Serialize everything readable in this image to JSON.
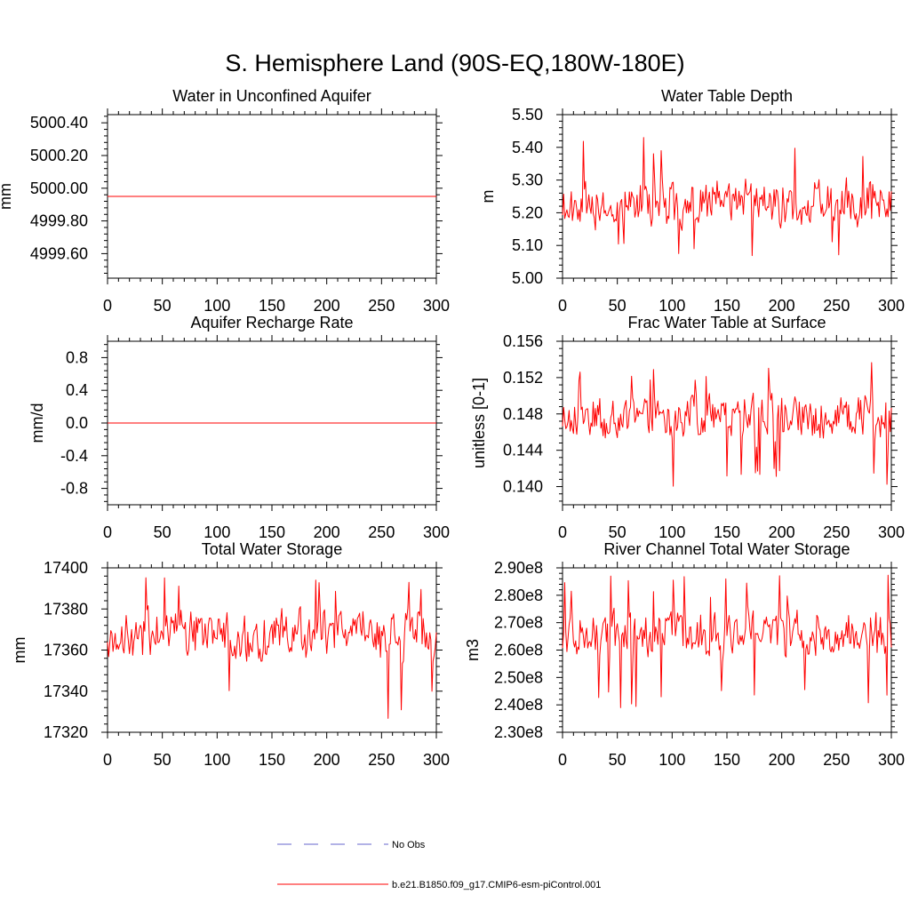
{
  "figure_title": "S. Hemisphere Land (90S-EQ,180W-180E)",
  "colors": {
    "model": "#ff0000",
    "obs": "#6666cc",
    "axis": "#000000"
  },
  "legend": [
    {
      "label": "No Obs",
      "style": "dashed",
      "color": "#6666cc"
    },
    {
      "label": "b.e21.B1850.f09_g17.CMIP6-esm-piControl.001",
      "style": "solid",
      "color": "#ff0000"
    }
  ],
  "chart_data": [
    {
      "type": "line",
      "title": "Water in Unconfined Aquifer",
      "ylabel": "mm",
      "xlim": [
        0,
        300
      ],
      "ylim": [
        4999.45,
        5000.45
      ],
      "xticks": [
        0,
        50,
        100,
        150,
        200,
        250,
        300
      ],
      "xtick_labels": [
        "0",
        "50",
        "100",
        "150",
        "200",
        "250",
        "300"
      ],
      "yticks": [
        4999.6,
        4999.8,
        5000.0,
        5000.2,
        5000.4
      ],
      "ytick_labels": [
        "4999.60",
        "4999.80",
        "5000.00",
        "5000.20",
        "5000.40"
      ],
      "series": [
        {
          "name": "b.e21.B1850.f09_g17.CMIP6-esm-piControl.001",
          "mode": "constant",
          "value": 4999.95
        }
      ]
    },
    {
      "type": "line",
      "title": "Water Table Depth",
      "ylabel": "m",
      "xlim": [
        0,
        300
      ],
      "ylim": [
        5.0,
        5.5
      ],
      "xticks": [
        0,
        50,
        100,
        150,
        200,
        250,
        300
      ],
      "xtick_labels": [
        "0",
        "50",
        "100",
        "150",
        "200",
        "250",
        "300"
      ],
      "yticks": [
        5.0,
        5.1,
        5.2,
        5.3,
        5.4,
        5.5
      ],
      "ytick_labels": [
        "5.00",
        "5.10",
        "5.20",
        "5.30",
        "5.40",
        "5.50"
      ],
      "series": [
        {
          "name": "b.e21.B1850.f09_g17.CMIP6-esm-piControl.001",
          "mode": "noise",
          "mean": 5.23,
          "amp": 0.075,
          "min": 5.06,
          "max": 5.44,
          "seed": 11
        }
      ]
    },
    {
      "type": "line",
      "title": "Aquifer Recharge Rate",
      "ylabel": "mm/d",
      "xlim": [
        0,
        300
      ],
      "ylim": [
        -1.0,
        1.0
      ],
      "xticks": [
        0,
        50,
        100,
        150,
        200,
        250,
        300
      ],
      "xtick_labels": [
        "0",
        "50",
        "100",
        "150",
        "200",
        "250",
        "300"
      ],
      "yticks": [
        -0.8,
        -0.4,
        0.0,
        0.4,
        0.8
      ],
      "ytick_labels": [
        "-0.8",
        "-0.4",
        "0.0",
        "0.4",
        "0.8"
      ],
      "series": [
        {
          "name": "b.e21.B1850.f09_g17.CMIP6-esm-piControl.001",
          "mode": "constant",
          "value": 0.0
        }
      ]
    },
    {
      "type": "line",
      "title": "Frac Water Table at Surface",
      "ylabel": "unitless [0-1]",
      "xlim": [
        0,
        300
      ],
      "ylim": [
        0.138,
        0.156
      ],
      "xticks": [
        0,
        50,
        100,
        150,
        200,
        250,
        300
      ],
      "xtick_labels": [
        "0",
        "50",
        "100",
        "150",
        "200",
        "250",
        "300"
      ],
      "yticks": [
        0.14,
        0.144,
        0.148,
        0.152,
        0.156
      ],
      "ytick_labels": [
        "0.140",
        "0.144",
        "0.148",
        "0.152",
        "0.156"
      ],
      "series": [
        {
          "name": "b.e21.B1850.f09_g17.CMIP6-esm-piControl.001",
          "mode": "noise",
          "mean": 0.1478,
          "amp": 0.0026,
          "min": 0.1397,
          "max": 0.154,
          "seed": 23
        }
      ]
    },
    {
      "type": "line",
      "title": "Total Water Storage",
      "ylabel": "mm",
      "xlim": [
        0,
        300
      ],
      "ylim": [
        17320,
        17400
      ],
      "xticks": [
        0,
        50,
        100,
        150,
        200,
        250,
        300
      ],
      "xtick_labels": [
        "0",
        "50",
        "100",
        "150",
        "200",
        "250",
        "300"
      ],
      "yticks": [
        17320,
        17340,
        17360,
        17380,
        17400
      ],
      "ytick_labels": [
        "17320",
        "17340",
        "17360",
        "17380",
        "17400"
      ],
      "series": [
        {
          "name": "b.e21.B1850.f09_g17.CMIP6-esm-piControl.001",
          "mode": "noise",
          "mean": 17368,
          "amp": 13,
          "min": 17326,
          "max": 17398,
          "seed": 37
        }
      ]
    },
    {
      "type": "line",
      "title": "River Channel Total Water Storage",
      "ylabel": "m3",
      "xlim": [
        0,
        300
      ],
      "ylim": [
        230000000,
        290000000
      ],
      "xticks": [
        0,
        50,
        100,
        150,
        200,
        250,
        300
      ],
      "xtick_labels": [
        "0",
        "50",
        "100",
        "150",
        "200",
        "250",
        "300"
      ],
      "yticks": [
        230000000,
        240000000,
        250000000,
        260000000,
        270000000,
        280000000,
        290000000
      ],
      "ytick_labels": [
        "2.30e8",
        "2.40e8",
        "2.50e8",
        "2.60e8",
        "2.70e8",
        "2.80e8",
        "2.90e8"
      ],
      "series": [
        {
          "name": "b.e21.B1850.f09_g17.CMIP6-esm-piControl.001",
          "mode": "noise",
          "mean": 266000000,
          "amp": 9500000,
          "min": 236000000,
          "max": 288000000,
          "seed": 53
        }
      ]
    }
  ]
}
